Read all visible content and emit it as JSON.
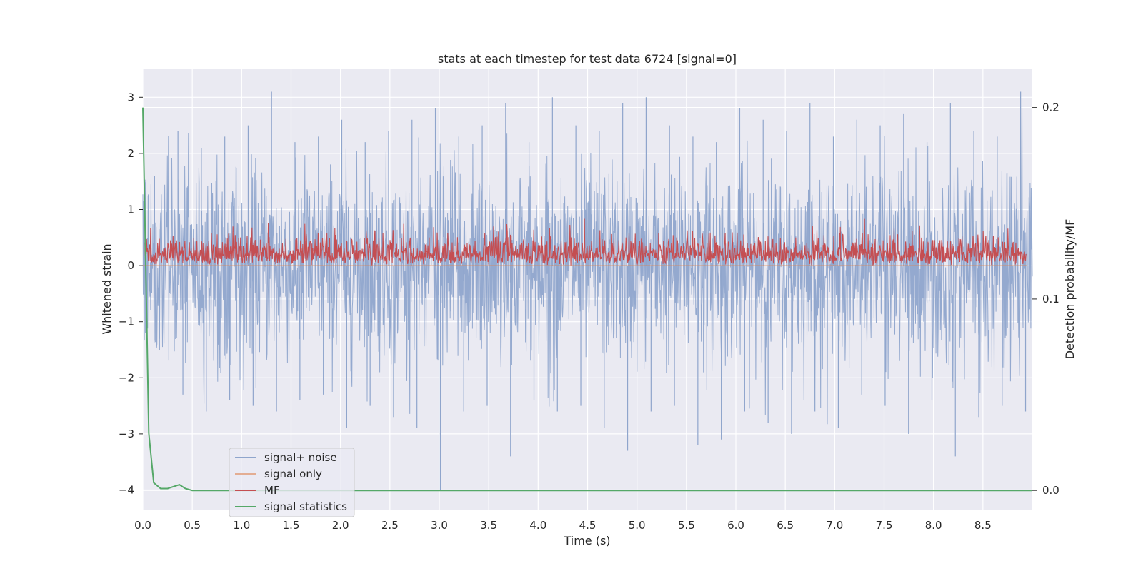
{
  "chart_data": {
    "type": "line",
    "title": "stats at each timestep for test data 6724 [signal=0]",
    "xlabel": "Time (s)",
    "ylabel": "Whitened strain",
    "y2label": "Detection probability/MF",
    "xlim": [
      0.0,
      9.0
    ],
    "ylim": [
      -4.35,
      3.5
    ],
    "y2lim": [
      -0.01,
      0.22
    ],
    "x_ticks": [
      "0.0",
      "0.5",
      "1.0",
      "1.5",
      "2.0",
      "2.5",
      "3.0",
      "3.5",
      "4.0",
      "4.5",
      "5.0",
      "5.5",
      "6.0",
      "6.5",
      "7.0",
      "7.5",
      "8.0",
      "8.5"
    ],
    "x_tick_values": [
      0.0,
      0.5,
      1.0,
      1.5,
      2.0,
      2.5,
      3.0,
      3.5,
      4.0,
      4.5,
      5.0,
      5.5,
      6.0,
      6.5,
      7.0,
      7.5,
      8.0,
      8.5
    ],
    "y_ticks": [
      "3",
      "2",
      "1",
      "0",
      "−1",
      "−2",
      "−3",
      "−4"
    ],
    "y_tick_values": [
      3,
      2,
      1,
      0,
      -1,
      -2,
      -3,
      -4
    ],
    "y2_ticks": [
      "0.2",
      "0.1",
      "0.0"
    ],
    "y2_tick_values": [
      0.2,
      0.1,
      0.0
    ],
    "grid": true,
    "legend_position": "lower-left",
    "series": [
      {
        "name": "signal+ noise",
        "color": "#8fa5cc",
        "axis": "left",
        "envelope_upper": [
          1.6,
          2.4,
          2.1,
          2.3,
          2.5,
          3.1,
          2.2,
          2.3,
          2.6,
          2.2,
          2.4,
          2.6,
          2.8,
          2.3,
          2.5,
          2.9,
          2.2,
          3.0,
          2.5,
          2.4,
          2.9,
          3.0,
          2.5,
          2.3,
          2.2,
          2.8,
          2.6,
          2.4,
          2.9,
          2.3,
          2.6,
          2.5,
          2.7,
          2.2,
          2.9,
          2.4,
          2.3,
          3.1
        ],
        "envelope_lower": [
          -1.5,
          -2.3,
          -2.6,
          -2.4,
          -2.5,
          -2.6,
          -2.4,
          -2.3,
          -2.9,
          -2.5,
          -2.7,
          -2.9,
          -4.0,
          -2.6,
          -2.5,
          -3.4,
          -2.4,
          -2.6,
          -2.5,
          -2.9,
          -3.3,
          -2.6,
          -2.5,
          -3.2,
          -3.1,
          -2.6,
          -2.8,
          -3.0,
          -2.6,
          -2.9,
          -2.3,
          -2.5,
          -3.0,
          -2.4,
          -3.4,
          -2.7,
          -2.5,
          -2.6
        ]
      },
      {
        "name": "signal only",
        "color": "#dd8452",
        "axis": "left",
        "values": "0"
      },
      {
        "name": "MF",
        "color": "#c44e52",
        "axis": "left",
        "range": [
          0.0,
          1.0
        ]
      },
      {
        "name": "signal statistics",
        "color": "#55a868",
        "axis": "right",
        "x": [
          0.0,
          0.06,
          0.11,
          0.18,
          0.25,
          0.37,
          0.43,
          0.5,
          1.0,
          9.0
        ],
        "y": [
          0.2,
          0.03,
          0.004,
          0.001,
          0.001,
          0.003,
          0.001,
          0.0,
          0.0,
          0.0
        ]
      }
    ]
  }
}
